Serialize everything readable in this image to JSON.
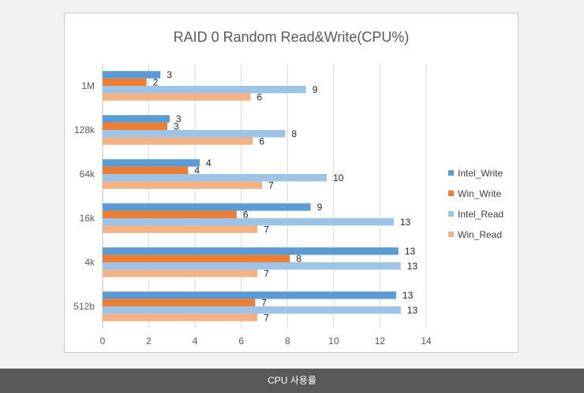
{
  "chart_data": {
    "type": "bar",
    "orientation": "horizontal",
    "title": "RAID 0 Random Read&Write(CPU%)",
    "xlabel": "",
    "ylabel": "",
    "categories": [
      "1M",
      "128k",
      "64k",
      "16k",
      "4k",
      "512b"
    ],
    "series": [
      {
        "name": "Intel_Write",
        "color": "#5b9bd5",
        "values": [
          2.5,
          2.9,
          4.2,
          9.0,
          12.8,
          12.7
        ],
        "labels": [
          "3",
          "3",
          "4",
          "9",
          "13",
          "13"
        ]
      },
      {
        "name": "Win_Write",
        "color": "#ed7d31",
        "values": [
          1.9,
          2.8,
          3.7,
          5.8,
          8.1,
          6.6
        ],
        "labels": [
          "2",
          "3",
          "4",
          "6",
          "8",
          "7"
        ]
      },
      {
        "name": "Intel_Read",
        "color": "#9dc3e6",
        "values": [
          8.8,
          7.9,
          9.7,
          12.6,
          12.9,
          12.9
        ],
        "labels": [
          "9",
          "8",
          "10",
          "13",
          "13",
          "13"
        ]
      },
      {
        "name": "Win_Read",
        "color": "#f4b183",
        "values": [
          6.4,
          6.5,
          6.9,
          6.7,
          6.7,
          6.7
        ],
        "labels": [
          "6",
          "6",
          "7",
          "7",
          "7",
          "7"
        ]
      }
    ],
    "xlim": [
      0,
      14
    ],
    "xticks": [
      0,
      2,
      4,
      6,
      8,
      10,
      12,
      14
    ],
    "grid": true,
    "legend": "right"
  },
  "caption": "CPU 사용률"
}
